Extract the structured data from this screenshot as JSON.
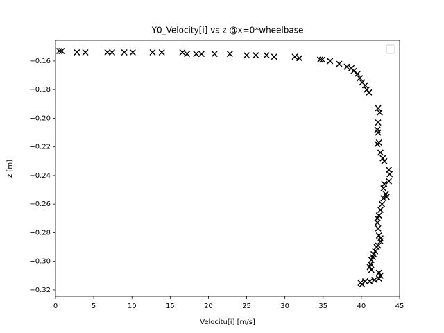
{
  "chart_data": {
    "type": "scatter",
    "title": "Y0_Velocity[i] vs z @x=0*wheelbase",
    "x_label": "Velocitu[i] [m/s]",
    "y_label": "z [m]",
    "color": "#000000",
    "marker": "x",
    "legend": "upper right",
    "x": [
      0.5,
      0.8,
      2.8,
      3.9,
      6.8,
      7.4,
      9.0,
      10.1,
      12.7,
      13.9,
      16.6,
      17.2,
      18.4,
      19.1,
      20.8,
      22.8,
      25.0,
      26.2,
      27.6,
      28.6,
      31.3,
      31.9,
      34.6,
      34.9,
      35.9,
      37.1,
      38.1,
      38.7,
      39.0,
      39.5,
      39.8,
      40.1,
      40.5,
      40.7,
      41.0,
      42.2,
      42.4,
      42.2,
      42.1,
      42.2,
      42.3,
      42.1,
      42.5,
      42.8,
      43.0,
      43.6,
      43.7,
      43.6,
      43.0,
      42.9,
      43.2,
      42.9,
      43.3,
      42.7,
      42.5,
      42.3,
      42.1,
      42.1,
      42.2,
      42.3,
      42.5,
      42.5,
      42.2,
      42.0,
      41.8,
      41.6,
      41.5,
      41.3,
      41.2,
      41.1,
      41.3,
      42.3,
      42.5,
      42.3,
      41.7,
      41.1,
      40.5,
      39.9,
      40.1
    ],
    "values": [
      -0.153,
      -0.153,
      -0.154,
      -0.154,
      -0.154,
      -0.154,
      -0.154,
      -0.154,
      -0.154,
      -0.154,
      -0.154,
      -0.155,
      -0.155,
      -0.155,
      -0.155,
      -0.155,
      -0.156,
      -0.156,
      -0.156,
      -0.157,
      -0.157,
      -0.158,
      -0.159,
      -0.159,
      -0.16,
      -0.162,
      -0.164,
      -0.165,
      -0.167,
      -0.169,
      -0.172,
      -0.175,
      -0.177,
      -0.18,
      -0.182,
      -0.193,
      -0.196,
      -0.203,
      -0.208,
      -0.21,
      -0.217,
      -0.218,
      -0.224,
      -0.228,
      -0.23,
      -0.236,
      -0.239,
      -0.244,
      -0.246,
      -0.249,
      -0.253,
      -0.256,
      -0.255,
      -0.26,
      -0.264,
      -0.268,
      -0.27,
      -0.273,
      -0.277,
      -0.282,
      -0.284,
      -0.286,
      -0.289,
      -0.29,
      -0.293,
      -0.295,
      -0.297,
      -0.299,
      -0.302,
      -0.304,
      -0.306,
      -0.308,
      -0.31,
      -0.312,
      -0.313,
      -0.314,
      -0.314,
      -0.315,
      -0.316
    ],
    "xlim": [
      0,
      45
    ],
    "xticks": [
      0,
      5,
      10,
      15,
      20,
      25,
      30,
      35,
      40,
      45
    ],
    "ylim": [
      -0.3244,
      -0.1455
    ],
    "yticks": [
      {
        "value": -0.32,
        "label": "−0.32"
      },
      {
        "value": -0.3,
        "label": "−0.30"
      },
      {
        "value": -0.28,
        "label": "−0.28"
      },
      {
        "value": -0.26,
        "label": "−0.26"
      },
      {
        "value": -0.24,
        "label": "−0.24"
      },
      {
        "value": -0.22,
        "label": "−0.22"
      },
      {
        "value": -0.2,
        "label": "−0.20"
      },
      {
        "value": -0.18,
        "label": "−0.18"
      },
      {
        "value": -0.16,
        "label": "−0.16"
      }
    ],
    "grid": false
  }
}
